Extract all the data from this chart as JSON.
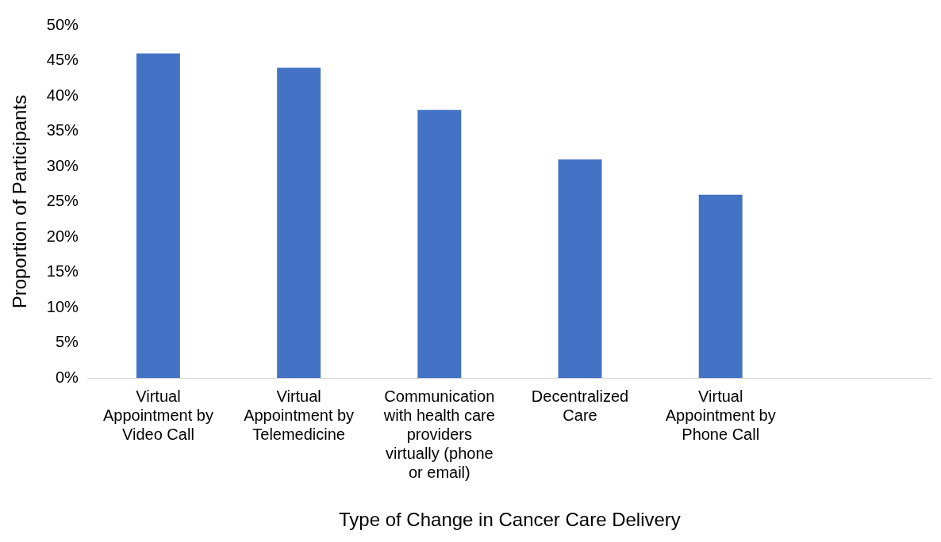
{
  "chart_data": {
    "type": "bar",
    "xlabel": "Type of Change in Cancer Care Delivery",
    "ylabel": "Proportion of Participants",
    "categories": [
      "Virtual Appointment by Video Call",
      "Virtual Appointment by Telemedicine",
      "Communication with health care providers virtually (phone or email)",
      "Decentralized Care",
      "Virtual Appointment by Phone Call",
      null
    ],
    "values": [
      46,
      44,
      38,
      31,
      26,
      null
    ],
    "color": "#4472c4",
    "ylim": [
      0,
      50
    ],
    "yticks": [
      {
        "value": 0,
        "label": "0%"
      },
      {
        "value": 5,
        "label": "5%"
      },
      {
        "value": 10,
        "label": "10%"
      },
      {
        "value": 15,
        "label": "15%"
      },
      {
        "value": 20,
        "label": "20%"
      },
      {
        "value": 25,
        "label": "25%"
      },
      {
        "value": 30,
        "label": "30%"
      },
      {
        "value": 35,
        "label": "35%"
      },
      {
        "value": 40,
        "label": "40%"
      },
      {
        "value": 45,
        "label": "45%"
      },
      {
        "value": 50,
        "label": "50%"
      }
    ],
    "grid": false,
    "legend": false
  }
}
